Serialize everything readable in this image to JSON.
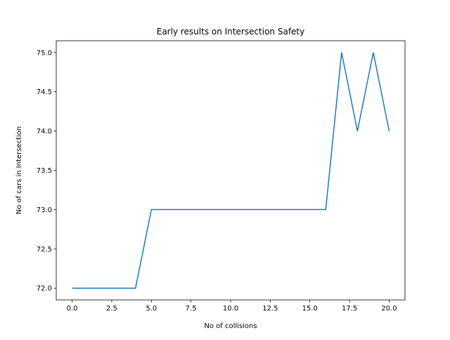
{
  "chart_data": {
    "type": "line",
    "title": "Early results on Intersection Safety",
    "xlabel": "No of collisions",
    "ylabel": "No of cars in Intersection",
    "xlim": [
      -1,
      21
    ],
    "ylim": [
      71.85,
      75.15
    ],
    "xticks": [
      0.0,
      2.5,
      5.0,
      7.5,
      10.0,
      12.5,
      15.0,
      17.5,
      20.0
    ],
    "xtick_labels": [
      "0.0",
      "2.5",
      "5.0",
      "7.5",
      "10.0",
      "12.5",
      "15.0",
      "17.5",
      "20.0"
    ],
    "yticks": [
      72.0,
      72.5,
      73.0,
      73.5,
      74.0,
      74.5,
      75.0
    ],
    "ytick_labels": [
      "72.0",
      "72.5",
      "73.0",
      "73.5",
      "74.0",
      "74.5",
      "75.0"
    ],
    "grid": false,
    "series": [
      {
        "color": "#1f77b4",
        "x": [
          0,
          1,
          2,
          3,
          4,
          5,
          6,
          7,
          8,
          9,
          10,
          11,
          12,
          13,
          14,
          15,
          16,
          17,
          18,
          19,
          20
        ],
        "y": [
          72,
          72,
          72,
          72,
          72,
          73,
          73,
          73,
          73,
          73,
          73,
          73,
          73,
          73,
          73,
          73,
          73,
          75,
          74,
          75,
          74
        ]
      }
    ]
  }
}
